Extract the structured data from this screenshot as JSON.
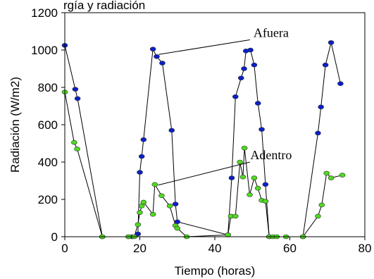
{
  "top_fragment": "rgía y radiación",
  "chart_data": {
    "type": "scatter",
    "xlabel": "Tiempo (horas)",
    "ylabel": "Radiación (W/m2)",
    "xlim": [
      0,
      80
    ],
    "ylim": [
      0,
      1200
    ],
    "xticks": [
      0,
      20,
      40,
      60,
      80
    ],
    "yticks": [
      0,
      200,
      400,
      600,
      800,
      1000,
      1200
    ],
    "grid": false,
    "legend": "none",
    "series": [
      {
        "name": "Afuera",
        "color": "#0A1FC8",
        "points": [
          [
            0,
            1025
          ],
          [
            2.8,
            790
          ],
          [
            3.4,
            740
          ],
          [
            10,
            0
          ],
          [
            17,
            0
          ],
          [
            18,
            0
          ],
          [
            19.5,
            15
          ],
          [
            20,
            345
          ],
          [
            20.5,
            430
          ],
          [
            21,
            520
          ],
          [
            23.5,
            1005
          ],
          [
            24.5,
            965
          ],
          [
            26,
            930
          ],
          [
            28.5,
            570
          ],
          [
            29.5,
            175
          ],
          [
            30,
            80
          ],
          [
            43.5,
            10
          ],
          [
            44.5,
            315
          ],
          [
            45.5,
            750
          ],
          [
            47,
            850
          ],
          [
            47.8,
            900
          ],
          [
            48.3,
            995
          ],
          [
            49.5,
            1000
          ],
          [
            50.5,
            920
          ],
          [
            51.5,
            715
          ],
          [
            52.5,
            575
          ],
          [
            53.5,
            280
          ],
          [
            54.5,
            0
          ],
          [
            63.5,
            0
          ],
          [
            67.5,
            555
          ],
          [
            68.3,
            695
          ],
          [
            69.5,
            920
          ],
          [
            71,
            1040
          ],
          [
            73.5,
            820
          ]
        ]
      },
      {
        "name": "Adentro",
        "color": "#4DDB1E",
        "points": [
          [
            0,
            775
          ],
          [
            2.5,
            505
          ],
          [
            3.3,
            470
          ],
          [
            10,
            0
          ],
          [
            17,
            0
          ],
          [
            18.5,
            0
          ],
          [
            19.5,
            65
          ],
          [
            20,
            130
          ],
          [
            20.5,
            165
          ],
          [
            21,
            185
          ],
          [
            23.5,
            120
          ],
          [
            24,
            280
          ],
          [
            25.8,
            220
          ],
          [
            28,
            165
          ],
          [
            29.5,
            60
          ],
          [
            30,
            45
          ],
          [
            32.5,
            0
          ],
          [
            43.5,
            10
          ],
          [
            44.3,
            110
          ],
          [
            45.5,
            110
          ],
          [
            46.7,
            400
          ],
          [
            47.5,
            320
          ],
          [
            47.9,
            475
          ],
          [
            49.3,
            225
          ],
          [
            50.5,
            315
          ],
          [
            51.5,
            260
          ],
          [
            52.5,
            195
          ],
          [
            53.5,
            190
          ],
          [
            54.5,
            0
          ],
          [
            55.5,
            0
          ],
          [
            56.5,
            0
          ],
          [
            59,
            0
          ],
          [
            63.5,
            0
          ],
          [
            67.5,
            110
          ],
          [
            68.5,
            170
          ],
          [
            69.8,
            340
          ],
          [
            71,
            315
          ],
          [
            74,
            330
          ]
        ]
      }
    ],
    "annotations": [
      {
        "text": "Afuera",
        "series": "Afuera",
        "at": [
          55,
          1070
        ],
        "point_to": [
          24.5,
          965
        ]
      },
      {
        "text": "Adentro",
        "series": "Adentro",
        "at": [
          55,
          415
        ],
        "point_to": [
          24.3,
          265
        ]
      }
    ]
  }
}
